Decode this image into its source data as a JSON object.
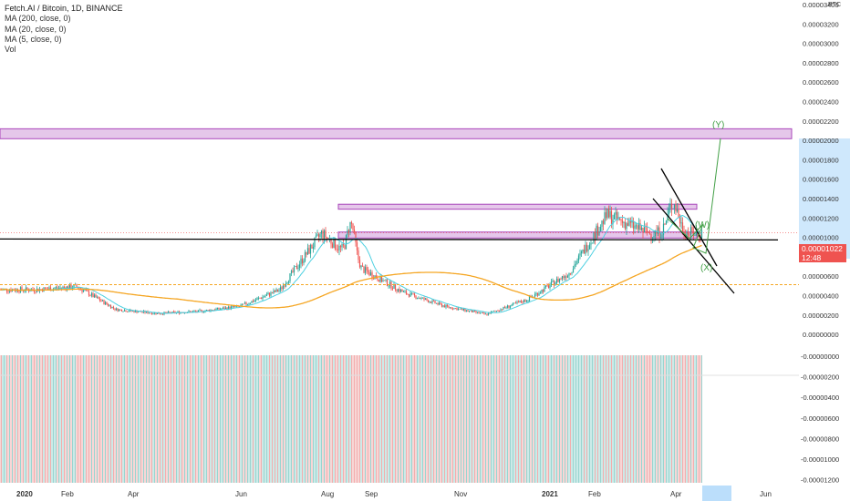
{
  "header": {
    "title": "Fetch.AI / Bitcoin, 1D, BINANCE",
    "indicators": [
      "MA (200, close, 0)",
      "MA (20, close, 0)",
      "MA (5, close, 0)",
      "Vol"
    ],
    "unit_label": "BTC"
  },
  "price_axis": {
    "ticks": [
      "0.00003400",
      "0.00003200",
      "0.00003000",
      "0.00002800",
      "0.00002600",
      "0.00002400",
      "0.00002200",
      "0.00002000",
      "0.00001800",
      "0.00001600",
      "0.00001400",
      "0.00001200",
      "0.00001000",
      "0.00000800",
      "0.00000600",
      "0.00000400",
      "0.00000200",
      "0.00000000"
    ],
    "current_price": "0.00001022",
    "countdown": "12:48"
  },
  "volume_axis": {
    "ticks": [
      "-0.00000000",
      "-0.00000200",
      "-0.00000400",
      "-0.00000600",
      "-0.00000800",
      "-0.00001000",
      "-0.00001200"
    ]
  },
  "time_axis": {
    "labels": [
      "2020",
      "Feb",
      "Apr",
      "Jun",
      "Aug",
      "Sep",
      "Nov",
      "2021",
      "Feb",
      "Apr",
      "Jun"
    ]
  },
  "annotations": {
    "waves": [
      "(W)",
      "(X)",
      "(Y)"
    ],
    "zones": [
      {
        "from": 1.97e-05,
        "to": 2.07e-05
      },
      {
        "from": 1.26e-05,
        "to": 1.31e-05
      },
      {
        "from": 9.7e-06,
        "to": 1.03e-05
      }
    ],
    "support_line": 9.6e-06,
    "colors": {
      "zone": "#e1bee7",
      "zone_border": "#9c27b0",
      "wave": "#43a047",
      "ma200": "#f5a623",
      "ma20": "#4dd0e1",
      "up": "#26a69a",
      "down": "#ef5350"
    }
  },
  "chart_data": {
    "type": "candlestick",
    "title": "Fetch.AI / Bitcoin, 1D, BINANCE",
    "x_range": [
      "2020-01-01",
      "2021-06-30"
    ],
    "ylim": [
      -2e-06,
      3.5e-05
    ],
    "price_series_monthly": [
      {
        "x": "2020-01",
        "close": 4.5e-06
      },
      {
        "x": "2020-02",
        "close": 4.8e-06
      },
      {
        "x": "2020-03",
        "close": 2.5e-06
      },
      {
        "x": "2020-04",
        "close": 2.1e-06
      },
      {
        "x": "2020-05",
        "close": 2.3e-06
      },
      {
        "x": "2020-06",
        "close": 2.8e-06
      },
      {
        "x": "2020-07",
        "close": 4.5e-06
      },
      {
        "x": "2020-08",
        "close": 1.02e-05
      },
      {
        "x": "2020-09",
        "close": 6.5e-06
      },
      {
        "x": "2020-10",
        "close": 4.2e-06
      },
      {
        "x": "2020-11",
        "close": 2.8e-06
      },
      {
        "x": "2020-12",
        "close": 2e-06
      },
      {
        "x": "2021-01",
        "close": 3.5e-06
      },
      {
        "x": "2021-02",
        "close": 6.2e-06
      },
      {
        "x": "2021-03",
        "close": 1.2e-05
      },
      {
        "x": "2021-04",
        "close": 1.02e-05
      }
    ],
    "ma200_level_end": 5e-06,
    "peak_aug_2020": 1.54e-05,
    "peak_mar_2021": 1.53e-05
  }
}
